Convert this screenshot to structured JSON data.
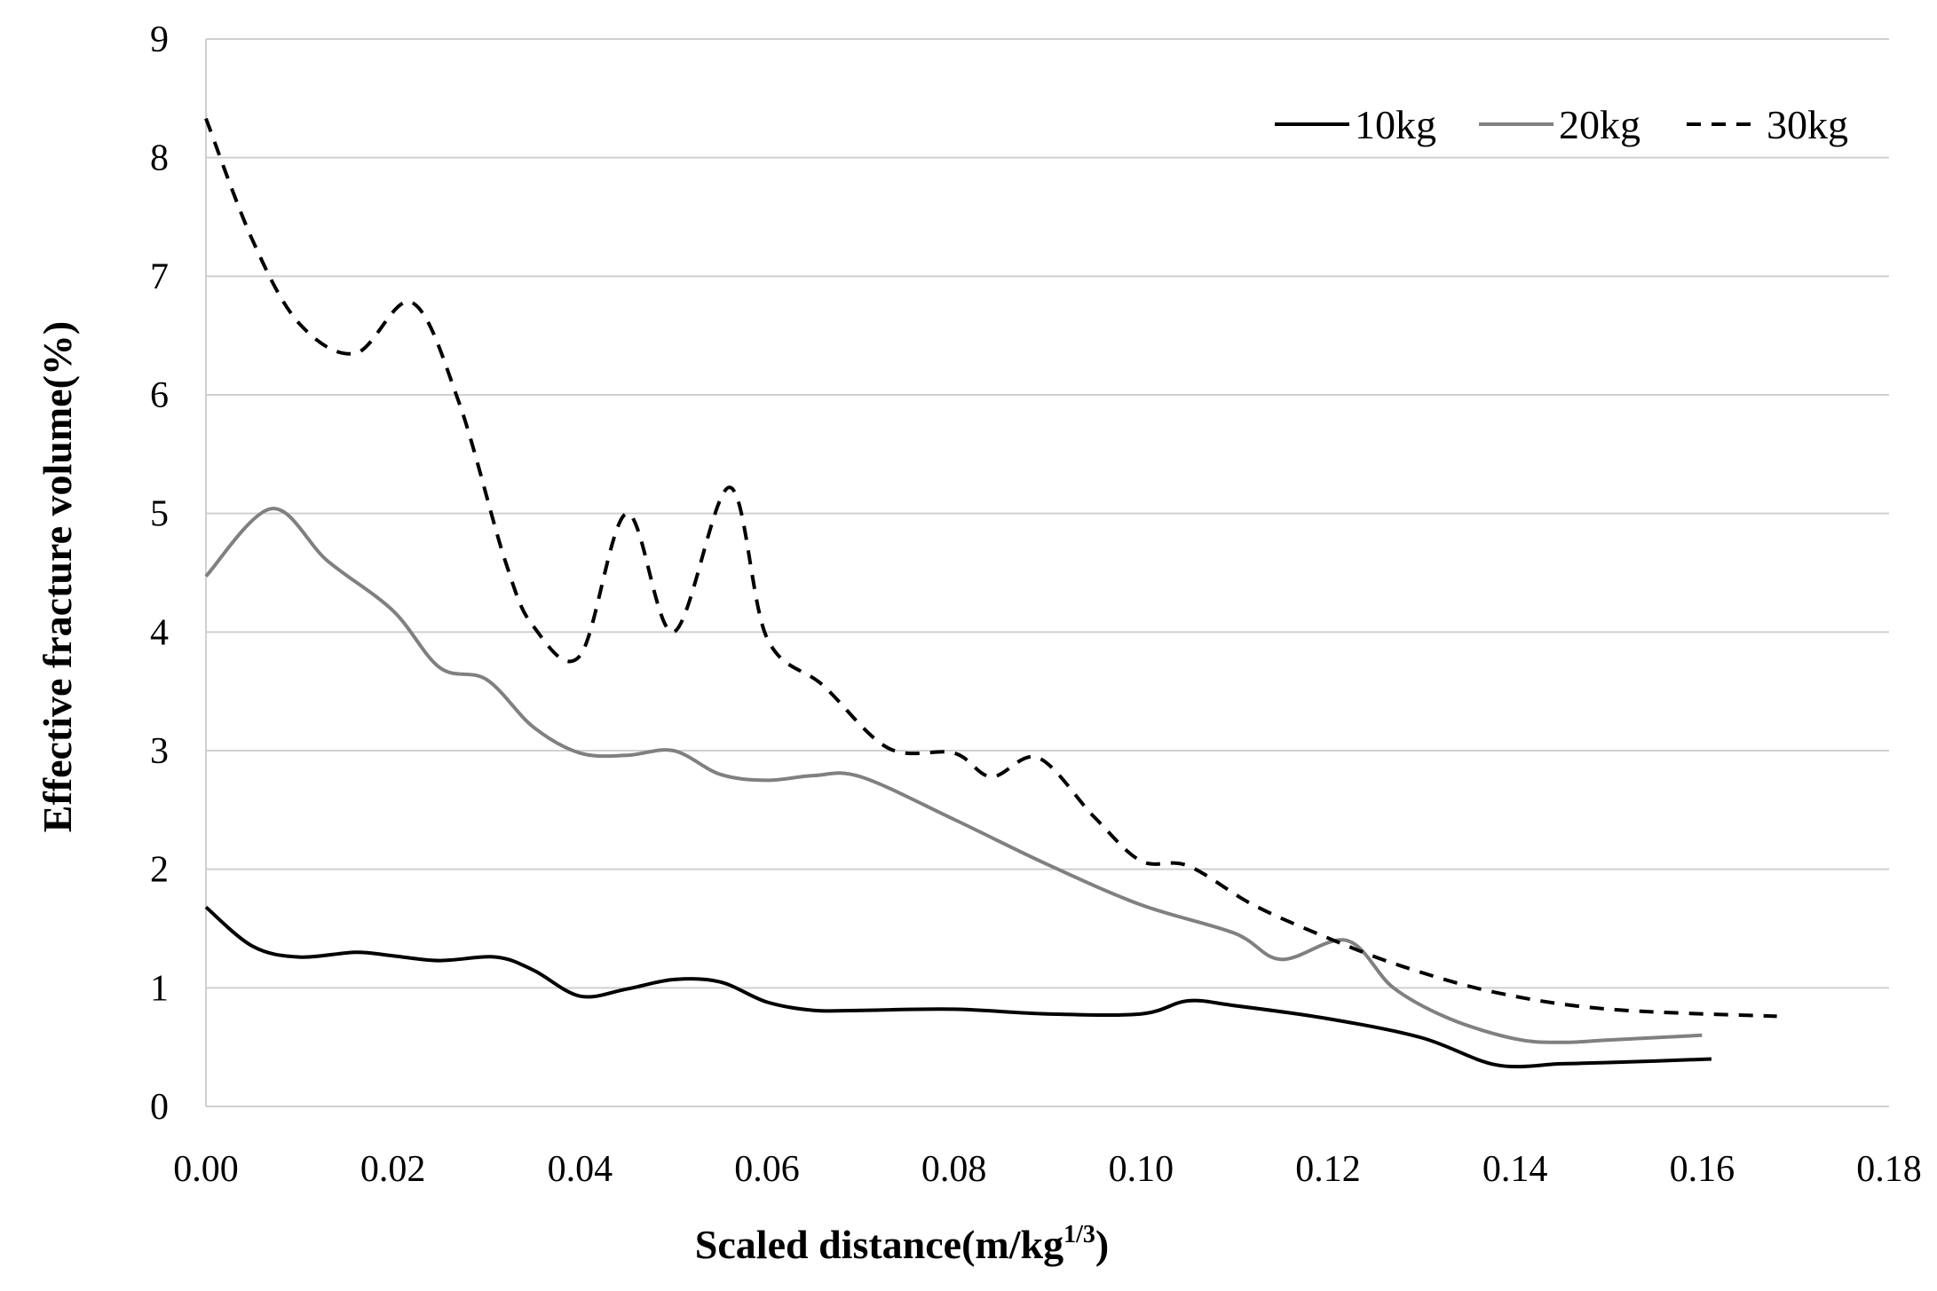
{
  "chart_data": {
    "type": "line",
    "title": "",
    "xlabel": "Scaled distance(m/kg",
    "xlabel_sup": "1/3",
    "xlabel_end": ")",
    "ylabel": "Effective fracture volume(%)",
    "xlim": [
      0,
      0.18
    ],
    "ylim": [
      0,
      9
    ],
    "x_ticks": [
      "0.00",
      "0.02",
      "0.04",
      "0.06",
      "0.08",
      "0.10",
      "0.12",
      "0.14",
      "0.16",
      "0.18"
    ],
    "y_ticks": [
      "0",
      "1",
      "2",
      "3",
      "4",
      "5",
      "6",
      "7",
      "8",
      "9"
    ],
    "x_tick_values": [
      0,
      0.02,
      0.04,
      0.06,
      0.08,
      0.1,
      0.12,
      0.14,
      0.16,
      0.18
    ],
    "y_tick_values": [
      0,
      1,
      2,
      3,
      4,
      5,
      6,
      7,
      8,
      9
    ],
    "grid": true,
    "legend_position": "top-right",
    "series": [
      {
        "name": "10kg",
        "color": "#000000",
        "dash": "solid",
        "x": [
          0.0,
          0.005,
          0.01,
          0.016,
          0.02,
          0.025,
          0.031,
          0.035,
          0.04,
          0.045,
          0.05,
          0.055,
          0.06,
          0.065,
          0.07,
          0.08,
          0.09,
          0.1,
          0.105,
          0.11,
          0.12,
          0.13,
          0.138,
          0.145,
          0.15,
          0.161
        ],
        "y": [
          1.68,
          1.35,
          1.26,
          1.3,
          1.27,
          1.23,
          1.26,
          1.15,
          0.93,
          0.99,
          1.07,
          1.05,
          0.88,
          0.81,
          0.81,
          0.82,
          0.78,
          0.78,
          0.89,
          0.85,
          0.74,
          0.58,
          0.35,
          0.36,
          0.37,
          0.4
        ]
      },
      {
        "name": "20kg",
        "color": "#808080",
        "dash": "solid",
        "x": [
          0.0,
          0.007,
          0.013,
          0.02,
          0.025,
          0.03,
          0.035,
          0.04,
          0.045,
          0.05,
          0.055,
          0.06,
          0.065,
          0.07,
          0.08,
          0.09,
          0.1,
          0.11,
          0.115,
          0.122,
          0.127,
          0.133,
          0.14,
          0.145,
          0.15,
          0.16
        ],
        "y": [
          4.47,
          5.04,
          4.6,
          4.18,
          3.7,
          3.6,
          3.2,
          2.98,
          2.96,
          3.0,
          2.8,
          2.75,
          2.79,
          2.78,
          2.42,
          2.04,
          1.7,
          1.46,
          1.24,
          1.4,
          1.0,
          0.74,
          0.57,
          0.54,
          0.56,
          0.6
        ]
      },
      {
        "name": "30kg",
        "color": "#000000",
        "dash": "dashed",
        "x": [
          0.0,
          0.005,
          0.01,
          0.016,
          0.022,
          0.027,
          0.032,
          0.035,
          0.04,
          0.045,
          0.05,
          0.056,
          0.06,
          0.066,
          0.073,
          0.08,
          0.084,
          0.089,
          0.095,
          0.1,
          0.105,
          0.112,
          0.12,
          0.128,
          0.138,
          0.15,
          0.168
        ],
        "y": [
          8.33,
          7.3,
          6.6,
          6.35,
          6.78,
          5.95,
          4.6,
          4.05,
          3.8,
          5.0,
          4.0,
          5.22,
          3.95,
          3.55,
          3.02,
          2.98,
          2.78,
          2.94,
          2.44,
          2.07,
          2.03,
          1.7,
          1.42,
          1.18,
          0.96,
          0.82,
          0.76
        ]
      }
    ]
  }
}
